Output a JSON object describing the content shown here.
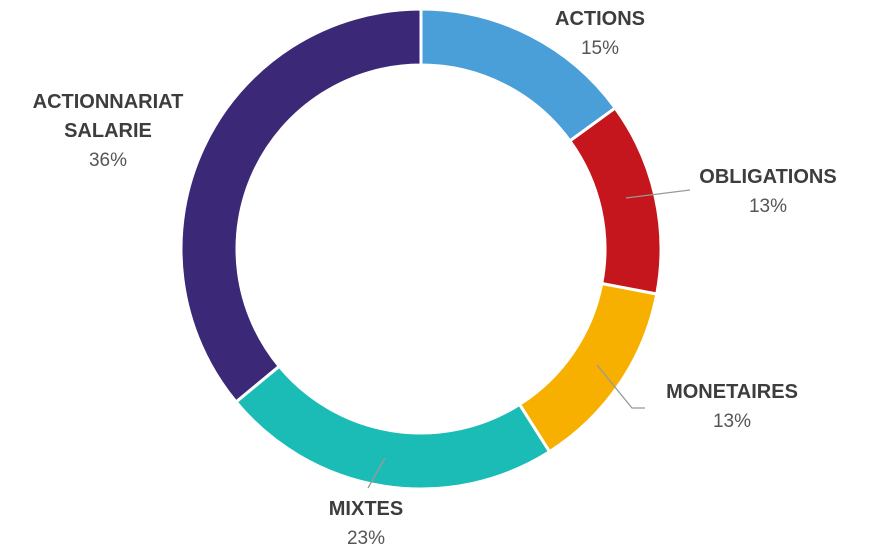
{
  "chart_data": {
    "type": "donut",
    "categories": [
      "ACTIONS",
      "OBLIGATIONS",
      "MONETAIRES",
      "MIXTES",
      "ACTIONNARIAT SALARIE"
    ],
    "values": [
      15,
      13,
      13,
      23,
      36
    ],
    "value_labels": [
      "15%",
      "13%",
      "13%",
      "23%",
      "36%"
    ],
    "colors": [
      "#4a9fd8",
      "#c4161c",
      "#f7b000",
      "#1bbcb5",
      "#3b2876"
    ]
  }
}
